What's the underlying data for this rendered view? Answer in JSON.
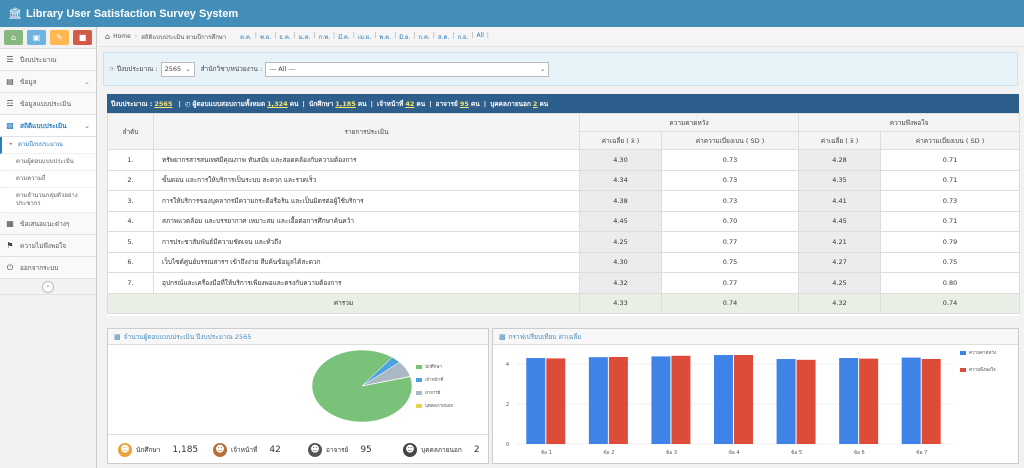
{
  "app": {
    "title": "Library User Satisfaction Survey System"
  },
  "sidebar": {
    "shortcuts": [
      {
        "icon": "home-icon",
        "color": "#87b87f"
      },
      {
        "icon": "monitor-icon",
        "color": "#6fb3e0"
      },
      {
        "icon": "pencil-icon",
        "color": "#ffb752"
      },
      {
        "icon": "stop-icon",
        "color": "#d15b47"
      }
    ],
    "items": [
      {
        "label": "ปีงบประมาณ",
        "icon": "list-icon"
      },
      {
        "label": "ข้อมูล",
        "icon": "db-icon"
      },
      {
        "label": "ข้อมูลแบบประเมิน",
        "icon": "stack-icon"
      },
      {
        "label": "สถิติแบบประเมิน",
        "icon": "chart-icon"
      },
      {
        "label": "ข้อเสนอแนะต่างๆ",
        "icon": "book-icon"
      },
      {
        "label": "ความไม่พึงพอใจ",
        "icon": "flag-icon"
      },
      {
        "label": "ออกจากระบบ",
        "icon": "power-icon"
      }
    ],
    "sub_items": [
      "ตามปีงบประมาณ",
      "ตามผู้ตอบแบบประเมิน",
      "ตามความถี่",
      "ตามจำนวนกลุ่มตัวอย่างประชากร"
    ]
  },
  "breadcrumb": {
    "home": "Home",
    "current": "สถิติแบบประเมิน ตามปีการศึกษา",
    "months": [
      "ต.ค.",
      "พ.ย.",
      "ธ.ค.",
      "ม.ค.",
      "ก.พ.",
      "มี.ค.",
      "เม.ย.",
      "พ.ค.",
      "มิ.ย.",
      "ก.ค.",
      "ส.ค.",
      "ก.ย.",
      "All"
    ]
  },
  "filter": {
    "year_label": "ปีงบประมาณ :",
    "year_value": "2565",
    "unit_label": "สำนักวิชา/หน่วยงาน :",
    "unit_value": "--- All ---"
  },
  "summary": {
    "year_label": "ปีงบประมาณ :",
    "year": "2565",
    "resp_label": "ผู้ตอบแบบสอบถามทั้งหมด",
    "resp": "1,324",
    "stu_label": "นักศึกษา",
    "stu": "1,185",
    "staff_label": "เจ้าหน้าที่",
    "staff": "42",
    "teach_label": "อาจารย์",
    "teach": "95",
    "ext_label": "บุคคลภายนอก",
    "ext": "2",
    "unit": "คน"
  },
  "table": {
    "h_no": "ลำดับ",
    "h_item": "รายการประเมิน",
    "h_exp": "ความคาดหวัง",
    "h_sat": "ความพึงพอใจ",
    "h_mean": "ค่าเฉลี่ย ( x̄ )",
    "h_sd": "ค่าความเบี่ยงเบน ( SD )",
    "rows": [
      {
        "no": "1.",
        "item": "ทรัพยากรสารสนเทศมีคุณภาพ ทันสมัย และสอดคล้องกับความต้องการ",
        "em": "4.30",
        "esd": "0.73",
        "sm": "4.28",
        "ssd": "0.71"
      },
      {
        "no": "2.",
        "item": "ขั้นตอน และการให้บริการเป็นระบบ สะดวก และรวดเร็ว",
        "em": "4.34",
        "esd": "0.73",
        "sm": "4.35",
        "ssd": "0.71"
      },
      {
        "no": "3.",
        "item": "การให้บริการของบุคลากรมีความกระตือรือร้น และเป็นมิตรต่อผู้ใช้บริการ",
        "em": "4.38",
        "esd": "0.73",
        "sm": "4.41",
        "ssd": "0.73"
      },
      {
        "no": "4.",
        "item": "สภาพแวดล้อม และบรรยากาศ เหมาะสม และเอื้อต่อการศึกษาค้นคว้า",
        "em": "4.45",
        "esd": "0.70",
        "sm": "4.45",
        "ssd": "0.71"
      },
      {
        "no": "5.",
        "item": "การประชาสัมพันธ์มีความชัดเจน และทั่วถึง",
        "em": "4.25",
        "esd": "0.77",
        "sm": "4.21",
        "ssd": "0.79"
      },
      {
        "no": "6.",
        "item": "เว็บไซต์ศูนย์บรรณสารฯ เข้าถึงง่าย สืบค้นข้อมูลได้สะดวก",
        "em": "4.30",
        "esd": "0.75",
        "sm": "4.27",
        "ssd": "0.75"
      },
      {
        "no": "7.",
        "item": "อุปกรณ์และเครื่องมือที่ให้บริการเพียงพอและตรงกับความต้องการ",
        "em": "4.32",
        "esd": "0.77",
        "sm": "4.25",
        "ssd": "0.80"
      }
    ],
    "total_label": "ค่ารวม",
    "total": {
      "em": "4.33",
      "esd": "0.74",
      "sm": "4.32",
      "ssd": "0.74"
    }
  },
  "pie_panel": {
    "title": "จำนวนผู้ตอบแบบประเมิน ปีงบประมาณ 2565"
  },
  "bar_panel": {
    "title": "กราฟเปรียบเทียบ ค่าเฉลี่ย"
  },
  "stats": [
    {
      "label": "นักศึกษา",
      "value": "1,185",
      "icon": "student-icon",
      "color": "#e8a33c"
    },
    {
      "label": "เจ้าหน้าที่",
      "value": "42",
      "icon": "staff-icon",
      "color": "#b5703c"
    },
    {
      "label": "อาจารย์",
      "value": "95",
      "icon": "teacher-icon",
      "color": "#555555"
    },
    {
      "label": "บุคคลภายนอก",
      "value": "2",
      "icon": "guest-icon",
      "color": "#444444"
    }
  ],
  "chart_data": [
    {
      "type": "pie",
      "title": "จำนวนผู้ตอบแบบประเมิน ปีงบประมาณ 2565",
      "series": [
        {
          "name": "นักศึกษา",
          "value": 1185,
          "color": "#7ac27a"
        },
        {
          "name": "เจ้าหน้าที่",
          "value": 42,
          "color": "#4aa3df"
        },
        {
          "name": "อาจารย์",
          "value": 95,
          "color": "#aab7c4"
        },
        {
          "name": "บุคคลภายนอก",
          "value": 2,
          "color": "#e5d54c"
        }
      ],
      "legend": "right"
    },
    {
      "type": "bar",
      "title": "กราฟเปรียบเทียบ ค่าเฉลี่ย",
      "categories": [
        "ข้อ 1",
        "ข้อ 2",
        "ข้อ 3",
        "ข้อ 4",
        "ข้อ 5",
        "ข้อ 6",
        "ข้อ 7"
      ],
      "series": [
        {
          "name": "ความคาดหวัง",
          "color": "#3f83e6",
          "values": [
            4.3,
            4.34,
            4.38,
            4.45,
            4.25,
            4.3,
            4.32
          ]
        },
        {
          "name": "ความพึงพอใจ",
          "color": "#dd4b39",
          "values": [
            4.28,
            4.35,
            4.41,
            4.45,
            4.21,
            4.27,
            4.25
          ]
        }
      ],
      "ylim": [
        0,
        4.5
      ],
      "yticks": [
        "0",
        "2",
        "4"
      ],
      "grid": true,
      "legend": "right"
    }
  ]
}
